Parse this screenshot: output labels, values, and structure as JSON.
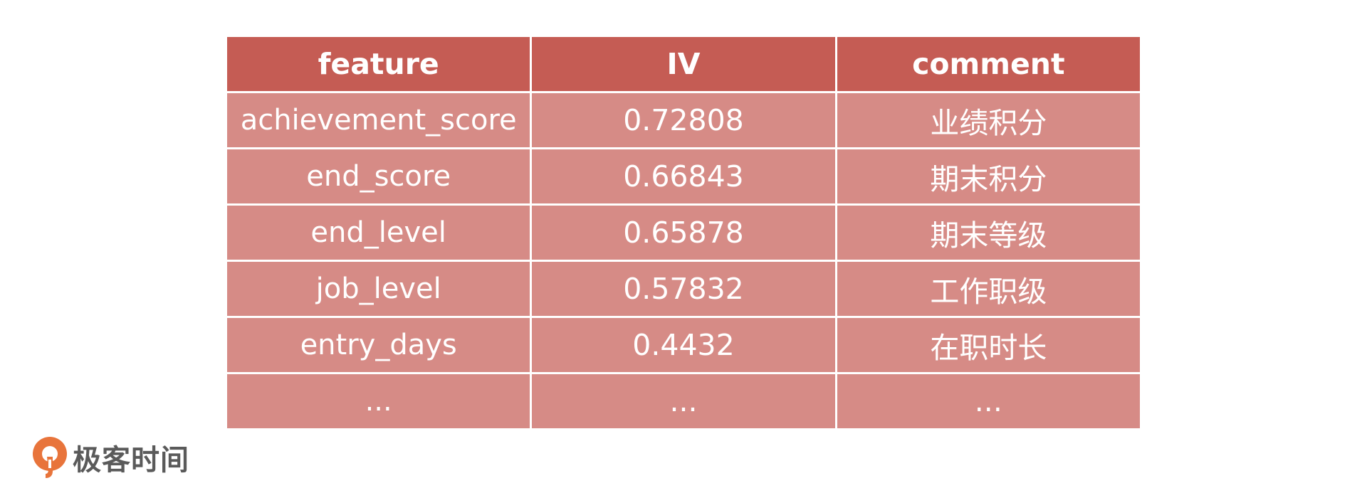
{
  "table": {
    "headers": [
      "feature",
      "IV",
      "comment"
    ],
    "rows": [
      [
        "achievement_score",
        "0.72808",
        "业绩积分"
      ],
      [
        "end_score",
        "0.66843",
        "期末积分"
      ],
      [
        "end_level",
        "0.65878",
        "期末等级"
      ],
      [
        "job_level",
        "0.57832",
        "工作职级"
      ],
      [
        "entry_days",
        "0.4432",
        "在职时长"
      ],
      [
        "...",
        "...",
        "..."
      ]
    ]
  },
  "colors": {
    "header_bg": "#c55c54",
    "cell_bg": "#d68b86",
    "text": "#ffffff",
    "logo_accent": "#e8743b",
    "logo_text": "#5a5a5a"
  },
  "logo": {
    "text": "极客时间",
    "icon": "geektime-logo-icon"
  }
}
